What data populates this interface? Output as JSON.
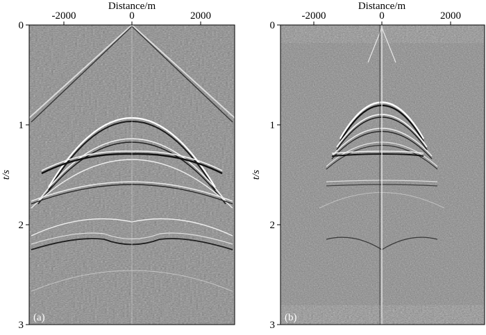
{
  "panels": [
    {
      "id": "a",
      "label": "(a)",
      "x_axis_title": "Distance/m",
      "y_axis_title": "t/s",
      "x_ticks": [
        "-2000",
        "0",
        "2000"
      ],
      "y_ticks": [
        "0",
        "1",
        "2",
        "3"
      ]
    },
    {
      "id": "b",
      "label": "(b)",
      "x_axis_title": "Distance/m",
      "y_axis_title": "t/s",
      "x_ticks": [
        "-2000",
        "0",
        "2000"
      ],
      "y_ticks": [
        "0",
        "1",
        "2",
        "3"
      ]
    }
  ]
}
